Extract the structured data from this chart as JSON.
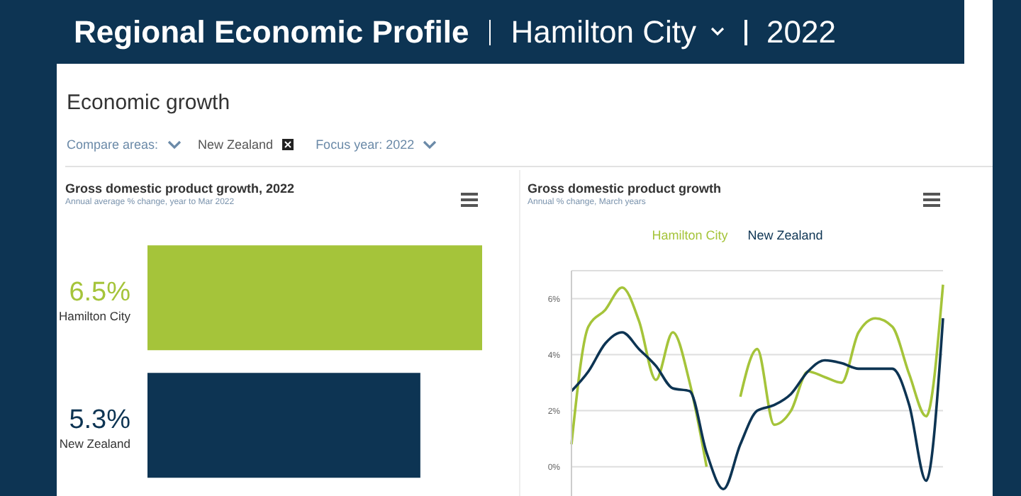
{
  "chart_data": [
    {
      "type": "bar",
      "orientation": "horizontal",
      "title": "Gross domestic product growth, 2022",
      "subtitle": "Annual average % change, year to Mar 2022",
      "categories": [
        "Hamilton City",
        "New Zealand"
      ],
      "values": [
        6.5,
        5.3
      ],
      "colors": [
        "#a5c43a",
        "#0d3453"
      ],
      "value_labels": [
        "6.5%",
        "5.3%"
      ],
      "tick_labels": false,
      "annotations": [
        "Regional Economic Profile",
        "Hamilton City",
        "2022",
        "Economic growth",
        "Compare areas:",
        "New Zealand",
        "Focus year: 2022"
      ]
    },
    {
      "type": "line",
      "title": "Gross domestic product growth",
      "subtitle": "Annual % change, March years",
      "categories": [
        null,
        null,
        null,
        null,
        null,
        null,
        null,
        null,
        null,
        null,
        null,
        null,
        null,
        null,
        null,
        null,
        null,
        null,
        null,
        null,
        null,
        null,
        null
      ],
      "series": [
        {
          "name": "Hamilton City",
          "color": "#a5c43a",
          "values": [
            0.8,
            5.0,
            5.6,
            6.4,
            5.2,
            3.1,
            4.8,
            3.0,
            0.0,
            null,
            2.5,
            4.2,
            1.5,
            2.0,
            3.4,
            3.2,
            3.0,
            4.8,
            5.3,
            5.0,
            3.3,
            1.8,
            6.5
          ]
        },
        {
          "name": "New Zealand",
          "color": "#0d3453",
          "values": [
            2.7,
            3.4,
            4.4,
            4.8,
            4.2,
            3.6,
            2.8,
            2.7,
            0.5,
            -0.8,
            0.8,
            2.0,
            2.2,
            2.6,
            3.4,
            3.8,
            3.7,
            3.5,
            3.5,
            3.5,
            2.2,
            -0.5,
            5.3
          ]
        }
      ],
      "ylim": [
        -1.4,
        7
      ],
      "yticks": [
        {
          "value": 0,
          "label": "0%"
        },
        {
          "value": 2,
          "label": "2%"
        },
        {
          "value": 4,
          "label": "4%"
        },
        {
          "value": 6,
          "label": "6%"
        }
      ],
      "grid": "y",
      "tick_labels": "y",
      "legend": "top",
      "marker": "none"
    }
  ]
}
